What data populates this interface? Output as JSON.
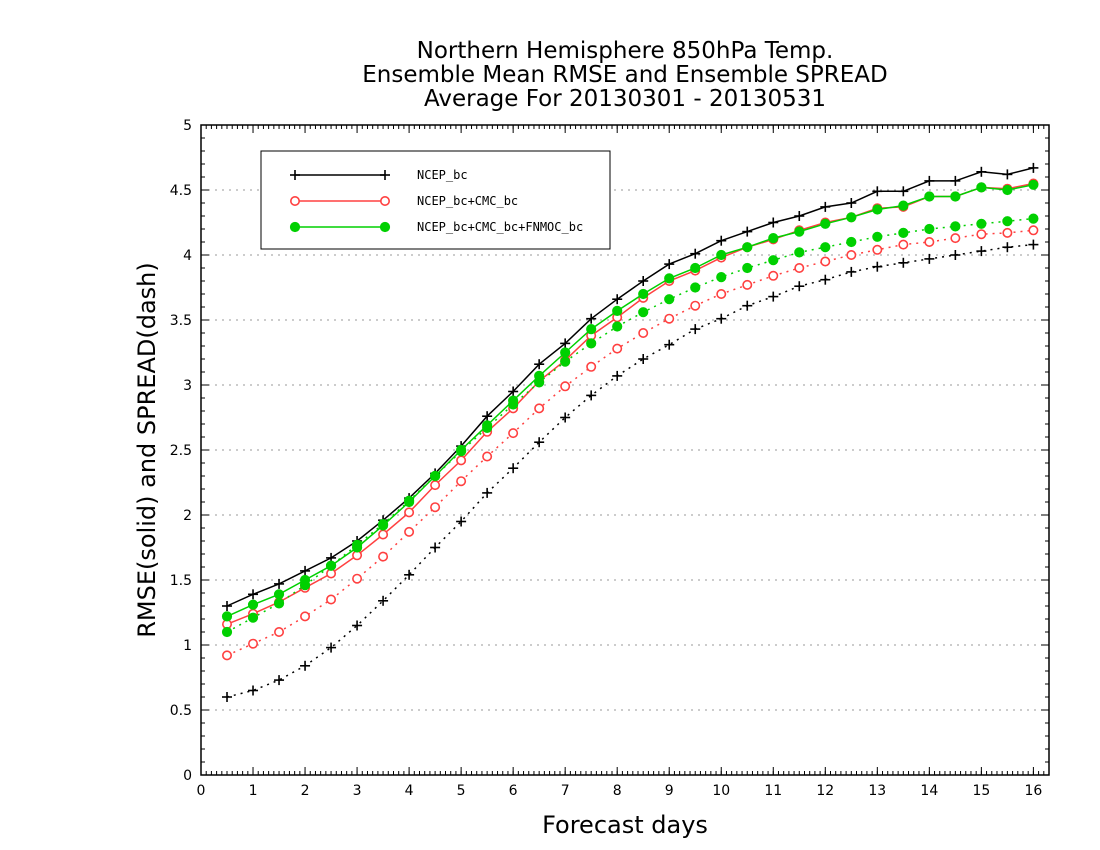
{
  "chart_data": {
    "type": "line",
    "title": [
      "Northern Hemisphere 850hPa Temp.",
      "Ensemble Mean RMSE and Ensemble SPREAD",
      "Average For 20130301 - 20130531"
    ],
    "xlabel": "Forecast days",
    "ylabel": "RMSE(solid) and SPREAD(dash)",
    "xlim": [
      0,
      16.3
    ],
    "ylim": [
      0,
      5
    ],
    "xticks": [
      "0",
      "1",
      "2",
      "3",
      "4",
      "5",
      "6",
      "7",
      "8",
      "9",
      "10",
      "11",
      "12",
      "13",
      "14",
      "15",
      "16"
    ],
    "yticks": [
      "0",
      "0.5",
      "1",
      "1.5",
      "2",
      "2.5",
      "3",
      "3.5",
      "4",
      "4.5",
      "5"
    ],
    "grid": "horizontal dotted",
    "legend_position": "top-left",
    "x": [
      0.5,
      1,
      1.5,
      2,
      2.5,
      3,
      3.5,
      4,
      4.5,
      5,
      5.5,
      6,
      6.5,
      7,
      7.5,
      8,
      8.5,
      9,
      9.5,
      10,
      10.5,
      11,
      11.5,
      12,
      12.5,
      13,
      13.5,
      14,
      14.5,
      15,
      15.5,
      16
    ],
    "series": [
      {
        "name": "NCEP_bc",
        "color": "#000000",
        "marker": "plus",
        "kind": "rmse",
        "values": [
          1.3,
          1.39,
          1.47,
          1.57,
          1.67,
          1.8,
          1.96,
          2.13,
          2.32,
          2.53,
          2.76,
          2.95,
          3.16,
          3.32,
          3.51,
          3.66,
          3.8,
          3.93,
          4.01,
          4.11,
          4.18,
          4.25,
          4.3,
          4.37,
          4.4,
          4.49,
          4.49,
          4.57,
          4.57,
          4.64,
          4.62,
          4.67
        ]
      },
      {
        "name": "NCEP_bc+CMC_bc",
        "color": "#ff4040",
        "marker": "circle",
        "kind": "rmse",
        "values": [
          1.16,
          1.24,
          1.33,
          1.44,
          1.55,
          1.69,
          1.85,
          2.02,
          2.23,
          2.42,
          2.64,
          2.82,
          3.03,
          3.19,
          3.38,
          3.52,
          3.67,
          3.8,
          3.88,
          3.98,
          4.06,
          4.12,
          4.19,
          4.25,
          4.29,
          4.36,
          4.37,
          4.45,
          4.45,
          4.52,
          4.51,
          4.55
        ]
      },
      {
        "name": "NCEP_bc+CMC_bc+FNMOC_bc",
        "color": "#00d000",
        "marker": "dot",
        "kind": "rmse",
        "values": [
          1.22,
          1.31,
          1.39,
          1.5,
          1.61,
          1.75,
          1.92,
          2.1,
          2.3,
          2.5,
          2.69,
          2.88,
          3.07,
          3.25,
          3.43,
          3.57,
          3.7,
          3.82,
          3.9,
          4.0,
          4.06,
          4.13,
          4.18,
          4.24,
          4.29,
          4.35,
          4.38,
          4.45,
          4.45,
          4.52,
          4.5,
          4.54
        ]
      },
      {
        "name": "NCEP_bc",
        "color": "#000000",
        "marker": "plus",
        "kind": "spread",
        "values": [
          0.6,
          0.65,
          0.73,
          0.84,
          0.98,
          1.15,
          1.34,
          1.54,
          1.75,
          1.95,
          2.17,
          2.36,
          2.56,
          2.75,
          2.92,
          3.07,
          3.2,
          3.31,
          3.43,
          3.51,
          3.61,
          3.68,
          3.76,
          3.81,
          3.87,
          3.91,
          3.94,
          3.97,
          4.0,
          4.03,
          4.06,
          4.08
        ]
      },
      {
        "name": "NCEP_bc+CMC_bc",
        "color": "#ff4040",
        "marker": "circle",
        "kind": "spread",
        "values": [
          0.92,
          1.01,
          1.1,
          1.22,
          1.35,
          1.51,
          1.68,
          1.87,
          2.06,
          2.26,
          2.45,
          2.63,
          2.82,
          2.99,
          3.14,
          3.28,
          3.4,
          3.51,
          3.61,
          3.7,
          3.77,
          3.84,
          3.9,
          3.95,
          4.0,
          4.04,
          4.08,
          4.1,
          4.13,
          4.16,
          4.17,
          4.19
        ]
      },
      {
        "name": "NCEP_bc+CMC_bc+FNMOC_bc",
        "color": "#00d000",
        "marker": "dot",
        "kind": "spread",
        "values": [
          1.1,
          1.21,
          1.32,
          1.46,
          1.61,
          1.77,
          1.93,
          2.11,
          2.3,
          2.49,
          2.67,
          2.85,
          3.02,
          3.18,
          3.32,
          3.45,
          3.56,
          3.66,
          3.75,
          3.83,
          3.9,
          3.96,
          4.02,
          4.06,
          4.1,
          4.14,
          4.17,
          4.2,
          4.22,
          4.24,
          4.26,
          4.28
        ]
      }
    ]
  }
}
